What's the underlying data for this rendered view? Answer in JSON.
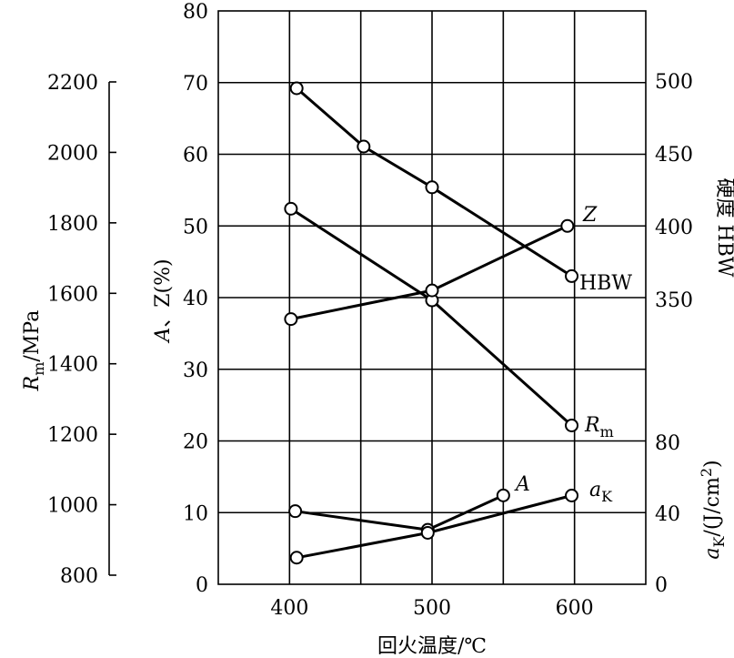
{
  "chart_data": {
    "type": "line",
    "x_axis": {
      "label": "回火温度/℃",
      "range": [
        350,
        650
      ],
      "ticks": [
        400,
        500,
        600
      ]
    },
    "y_axes": {
      "az": {
        "label_main": "A",
        "label_rest": "、Z(%)",
        "range": [
          0,
          80
        ],
        "ticks": [
          0,
          10,
          20,
          30,
          40,
          50,
          60,
          70,
          80
        ]
      },
      "rm": {
        "label_main": "R",
        "label_sub": "m",
        "label_rest": "/MPa",
        "ticks": [
          800,
          1000,
          1200,
          1400,
          1600,
          1800,
          2000,
          2200
        ]
      },
      "hbw": {
        "label": "硬度  HBW",
        "ticks": [
          350,
          400,
          450,
          500
        ]
      },
      "ak": {
        "label_main": "a",
        "label_sub": "K",
        "label_rest": "/(J/cm",
        "label_sup": "2",
        "label_end": ")",
        "ticks": [
          0,
          40,
          80
        ]
      }
    },
    "series": [
      {
        "key": "hbw",
        "name": "HBW",
        "axis": "hbw",
        "x": [
          405,
          452,
          500,
          598
        ],
        "y": [
          495,
          455,
          427,
          366
        ]
      },
      {
        "key": "rm",
        "name_main": "R",
        "name_sub": "m",
        "axis": "rm",
        "x": [
          401,
          500,
          598
        ],
        "y": [
          1840,
          1580,
          1225
        ]
      },
      {
        "key": "z",
        "name_main": "Z",
        "axis": "az",
        "x": [
          401,
          500,
          595
        ],
        "y": [
          37,
          41,
          50
        ]
      },
      {
        "key": "a",
        "name_main": "A",
        "axis": "az",
        "x": [
          404,
          497,
          550
        ],
        "y": [
          10.2,
          7.6,
          12.4
        ]
      },
      {
        "key": "ak",
        "name_main": "a",
        "name_sub": "K",
        "axis": "ak",
        "x": [
          405,
          497,
          598
        ],
        "y": [
          15,
          29,
          50
        ]
      }
    ]
  }
}
